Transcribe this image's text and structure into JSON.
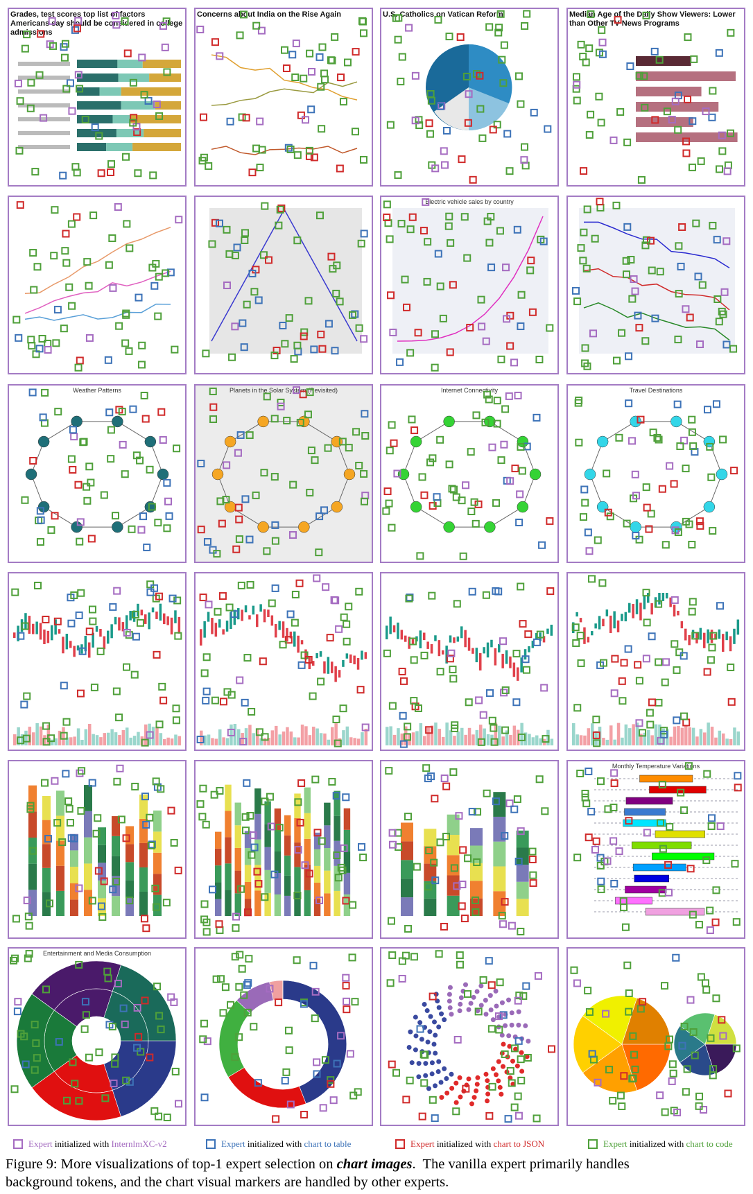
{
  "panels": [
    {
      "kind": "stacked-hbar",
      "title": "Grades, test scores top list of factors Americans say should be considered in college admissions"
    },
    {
      "kind": "line-pew",
      "title": "Concerns about India on the Rise Again"
    },
    {
      "kind": "pie",
      "title": "U.S. Catholics on Vatican Reform"
    },
    {
      "kind": "hbar",
      "title": "Median Age of the Daily Show Viewers: Lower than Other TV News Programs"
    },
    {
      "kind": "lines"
    },
    {
      "kind": "peak-line"
    },
    {
      "kind": "growth-line",
      "title": "Electric vehicle sales by country"
    },
    {
      "kind": "decline-lines"
    },
    {
      "kind": "network",
      "title": "Weather Patterns",
      "node": "#1f6f78"
    },
    {
      "kind": "network",
      "title": "Planets in the Solar System (Revisited)",
      "node": "#f5a623",
      "bg": "#ececec"
    },
    {
      "kind": "network",
      "title": "Internet Connectivity",
      "node": "#35d335"
    },
    {
      "kind": "network",
      "title": "Travel Destinations",
      "node": "#33d6e8"
    },
    {
      "kind": "candle"
    },
    {
      "kind": "candle"
    },
    {
      "kind": "candle"
    },
    {
      "kind": "candle"
    },
    {
      "kind": "stacked-column"
    },
    {
      "kind": "stacked-column"
    },
    {
      "kind": "stacked-column"
    },
    {
      "kind": "gantt",
      "title": "Monthly Temperature Variations"
    },
    {
      "kind": "sunburst",
      "title": "Entertainment and Media Consumption"
    },
    {
      "kind": "donut"
    },
    {
      "kind": "dot-donut"
    },
    {
      "kind": "pie-of-pie"
    }
  ],
  "legend": [
    {
      "expert": "Expert",
      "with": " initialized with ",
      "source": "InternlmXC-v2",
      "color": "#a56cc1"
    },
    {
      "expert": "Expert",
      "with": " initialized with ",
      "source": "chart to table",
      "color": "#3d73b8"
    },
    {
      "expert": "Expert",
      "with": " initialized with ",
      "source": "chart to JSON",
      "color": "#d02a2a"
    },
    {
      "expert": "Expert",
      "with": " initialized with ",
      "source": "chart to code",
      "color": "#4fa03a"
    }
  ],
  "caption": {
    "label": "Figure 9:",
    "before": " More visualizations of top-1 expert selection on ",
    "emph": "chart images",
    "after": ".  The vanilla expert primarily handles",
    "line2": "background tokens, and the chart visual markers are handled by other experts."
  }
}
